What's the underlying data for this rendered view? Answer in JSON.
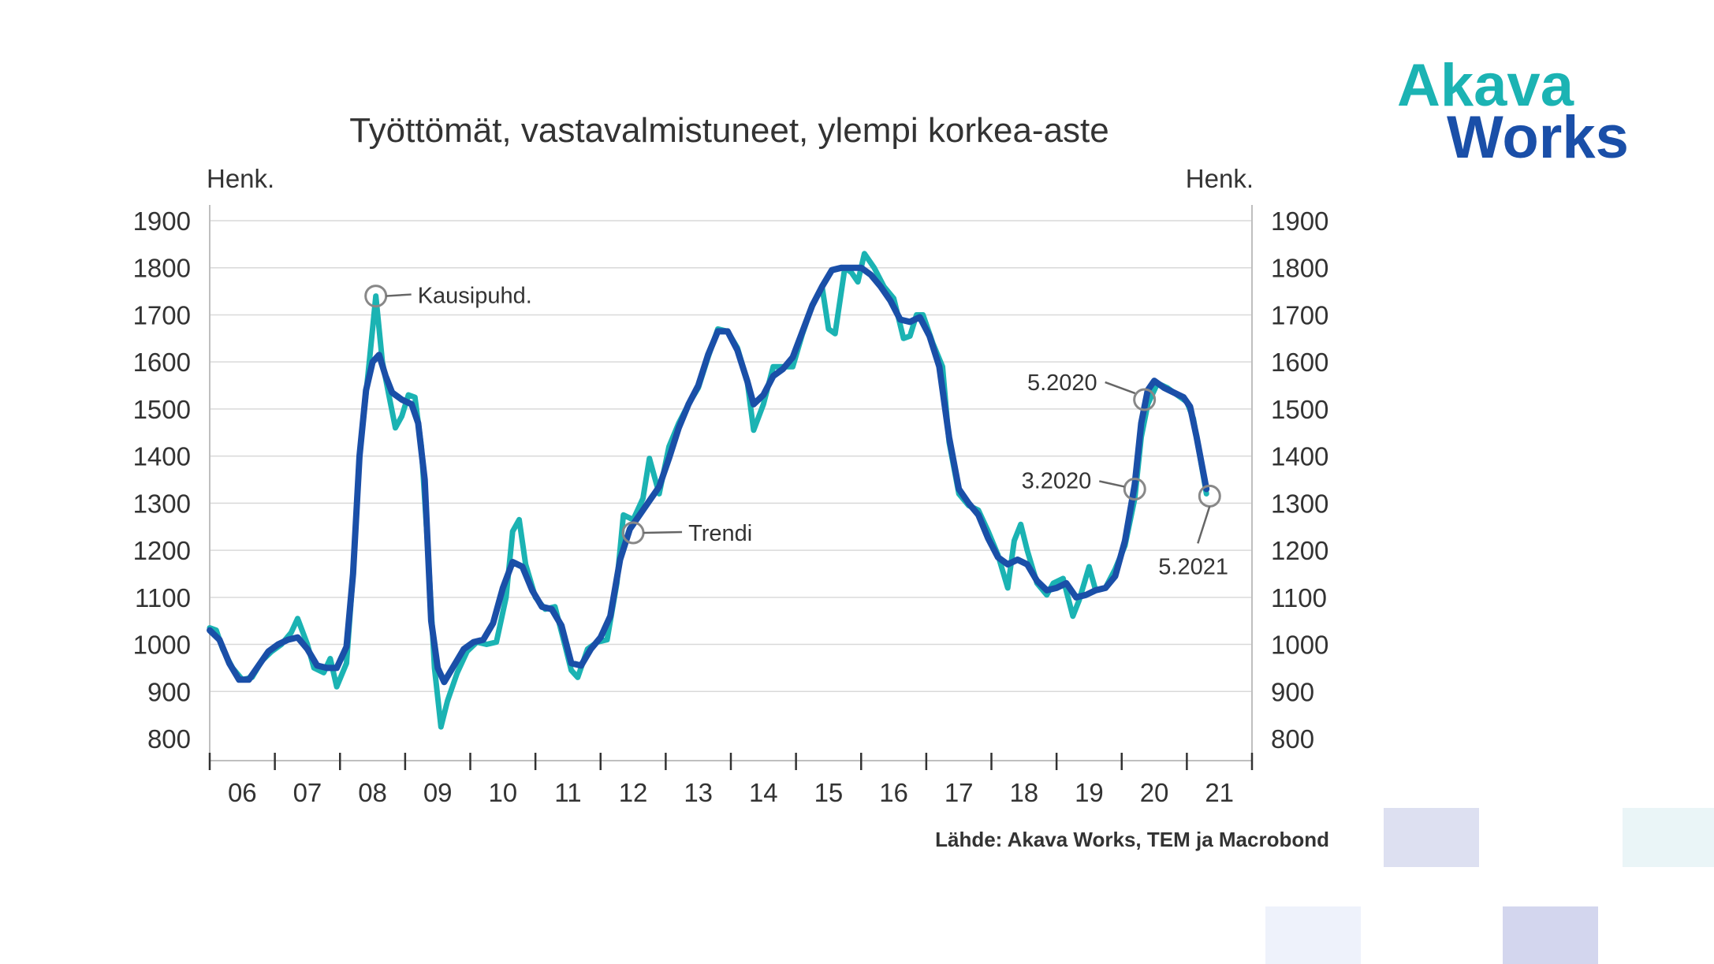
{
  "brand": {
    "logo_line1": "Akava",
    "logo_line2": "Works",
    "color_akava": "#1bb3b3",
    "color_works": "#1a4fa8"
  },
  "source_note": "Lähde: Akava Works, TEM ja Macrobond",
  "annotations": {
    "seasonal": "Kausipuhd.",
    "trend": "Trendi",
    "may2020": "5.2020",
    "mar2020": "3.2020",
    "may2021": "5.2021"
  },
  "chart_data": {
    "type": "line",
    "title": "Työttömät, vastavalmistuneet, ylempi korkea-aste",
    "ylabel_left": "Henk.",
    "ylabel_right": "Henk.",
    "ylim": [
      800,
      1900
    ],
    "yticks": [
      800,
      900,
      1000,
      1100,
      1200,
      1300,
      1400,
      1500,
      1600,
      1700,
      1800,
      1900
    ],
    "xlim": [
      2006,
      2022
    ],
    "xtick_labels": [
      "06",
      "07",
      "08",
      "09",
      "10",
      "11",
      "12",
      "13",
      "14",
      "15",
      "16",
      "17",
      "18",
      "19",
      "20",
      "21"
    ],
    "grid": true,
    "colors": {
      "seasonal": "#1bb3b3",
      "trend": "#1a4fa8",
      "grid": "#d9d9d9",
      "marker": "#888888"
    },
    "series": [
      {
        "name": "Kausipuhd.",
        "points": [
          [
            2006.0,
            1035
          ],
          [
            2006.1,
            1030
          ],
          [
            2006.2,
            990
          ],
          [
            2006.35,
            950
          ],
          [
            2006.5,
            925
          ],
          [
            2006.65,
            930
          ],
          [
            2006.8,
            965
          ],
          [
            2006.95,
            985
          ],
          [
            2007.1,
            1000
          ],
          [
            2007.25,
            1025
          ],
          [
            2007.35,
            1055
          ],
          [
            2007.5,
            1000
          ],
          [
            2007.6,
            950
          ],
          [
            2007.75,
            940
          ],
          [
            2007.85,
            970
          ],
          [
            2007.95,
            910
          ],
          [
            2008.1,
            960
          ],
          [
            2008.2,
            1150
          ],
          [
            2008.3,
            1400
          ],
          [
            2008.45,
            1600
          ],
          [
            2008.55,
            1740
          ],
          [
            2008.65,
            1600
          ],
          [
            2008.75,
            1530
          ],
          [
            2008.85,
            1460
          ],
          [
            2008.95,
            1485
          ],
          [
            2009.05,
            1530
          ],
          [
            2009.15,
            1525
          ],
          [
            2009.25,
            1420
          ],
          [
            2009.35,
            1200
          ],
          [
            2009.45,
            950
          ],
          [
            2009.55,
            825
          ],
          [
            2009.65,
            880
          ],
          [
            2009.8,
            940
          ],
          [
            2009.95,
            985
          ],
          [
            2010.1,
            1005
          ],
          [
            2010.25,
            1000
          ],
          [
            2010.4,
            1005
          ],
          [
            2010.55,
            1100
          ],
          [
            2010.65,
            1240
          ],
          [
            2010.75,
            1265
          ],
          [
            2010.85,
            1170
          ],
          [
            2011.0,
            1100
          ],
          [
            2011.15,
            1075
          ],
          [
            2011.3,
            1080
          ],
          [
            2011.45,
            1000
          ],
          [
            2011.55,
            945
          ],
          [
            2011.65,
            930
          ],
          [
            2011.8,
            990
          ],
          [
            2011.95,
            1005
          ],
          [
            2012.1,
            1010
          ],
          [
            2012.25,
            1130
          ],
          [
            2012.35,
            1275
          ],
          [
            2012.5,
            1265
          ],
          [
            2012.65,
            1310
          ],
          [
            2012.75,
            1395
          ],
          [
            2012.9,
            1320
          ],
          [
            2013.05,
            1420
          ],
          [
            2013.2,
            1470
          ],
          [
            2013.35,
            1510
          ],
          [
            2013.5,
            1545
          ],
          [
            2013.65,
            1610
          ],
          [
            2013.8,
            1670
          ],
          [
            2013.95,
            1665
          ],
          [
            2014.1,
            1630
          ],
          [
            2014.25,
            1560
          ],
          [
            2014.35,
            1455
          ],
          [
            2014.5,
            1510
          ],
          [
            2014.65,
            1590
          ],
          [
            2014.8,
            1590
          ],
          [
            2014.95,
            1590
          ],
          [
            2015.1,
            1660
          ],
          [
            2015.25,
            1720
          ],
          [
            2015.4,
            1760
          ],
          [
            2015.5,
            1670
          ],
          [
            2015.6,
            1660
          ],
          [
            2015.75,
            1800
          ],
          [
            2015.85,
            1790
          ],
          [
            2015.95,
            1770
          ],
          [
            2016.05,
            1830
          ],
          [
            2016.2,
            1800
          ],
          [
            2016.35,
            1760
          ],
          [
            2016.5,
            1735
          ],
          [
            2016.65,
            1650
          ],
          [
            2016.75,
            1655
          ],
          [
            2016.85,
            1700
          ],
          [
            2016.95,
            1700
          ],
          [
            2017.1,
            1640
          ],
          [
            2017.25,
            1590
          ],
          [
            2017.35,
            1430
          ],
          [
            2017.5,
            1320
          ],
          [
            2017.65,
            1295
          ],
          [
            2017.8,
            1285
          ],
          [
            2017.95,
            1240
          ],
          [
            2018.1,
            1190
          ],
          [
            2018.25,
            1120
          ],
          [
            2018.35,
            1220
          ],
          [
            2018.45,
            1255
          ],
          [
            2018.55,
            1200
          ],
          [
            2018.7,
            1130
          ],
          [
            2018.85,
            1105
          ],
          [
            2018.95,
            1130
          ],
          [
            2019.1,
            1140
          ],
          [
            2019.25,
            1060
          ],
          [
            2019.35,
            1095
          ],
          [
            2019.5,
            1165
          ],
          [
            2019.6,
            1115
          ],
          [
            2019.75,
            1120
          ],
          [
            2019.9,
            1160
          ],
          [
            2020.05,
            1210
          ],
          [
            2020.2,
            1310
          ],
          [
            2020.3,
            1440
          ],
          [
            2020.4,
            1510
          ],
          [
            2020.55,
            1555
          ],
          [
            2020.7,
            1545
          ],
          [
            2020.85,
            1530
          ],
          [
            2021.0,
            1515
          ],
          [
            2021.1,
            1480
          ],
          [
            2021.2,
            1400
          ],
          [
            2021.3,
            1320
          ]
        ]
      },
      {
        "name": "Trendi",
        "points": [
          [
            2006.0,
            1030
          ],
          [
            2006.15,
            1010
          ],
          [
            2006.3,
            960
          ],
          [
            2006.45,
            925
          ],
          [
            2006.6,
            925
          ],
          [
            2006.75,
            955
          ],
          [
            2006.9,
            985
          ],
          [
            2007.05,
            1000
          ],
          [
            2007.2,
            1010
          ],
          [
            2007.35,
            1015
          ],
          [
            2007.5,
            990
          ],
          [
            2007.65,
            955
          ],
          [
            2007.8,
            950
          ],
          [
            2007.95,
            950
          ],
          [
            2008.1,
            995
          ],
          [
            2008.2,
            1150
          ],
          [
            2008.3,
            1400
          ],
          [
            2008.4,
            1540
          ],
          [
            2008.5,
            1600
          ],
          [
            2008.6,
            1615
          ],
          [
            2008.7,
            1570
          ],
          [
            2008.8,
            1535
          ],
          [
            2008.95,
            1520
          ],
          [
            2009.1,
            1510
          ],
          [
            2009.2,
            1470
          ],
          [
            2009.3,
            1350
          ],
          [
            2009.4,
            1050
          ],
          [
            2009.5,
            950
          ],
          [
            2009.6,
            920
          ],
          [
            2009.75,
            955
          ],
          [
            2009.9,
            990
          ],
          [
            2010.05,
            1005
          ],
          [
            2010.2,
            1010
          ],
          [
            2010.35,
            1045
          ],
          [
            2010.5,
            1120
          ],
          [
            2010.65,
            1175
          ],
          [
            2010.8,
            1165
          ],
          [
            2010.95,
            1115
          ],
          [
            2011.1,
            1080
          ],
          [
            2011.25,
            1075
          ],
          [
            2011.4,
            1040
          ],
          [
            2011.55,
            960
          ],
          [
            2011.7,
            955
          ],
          [
            2011.85,
            990
          ],
          [
            2012.0,
            1015
          ],
          [
            2012.15,
            1060
          ],
          [
            2012.3,
            1180
          ],
          [
            2012.45,
            1245
          ],
          [
            2012.6,
            1275
          ],
          [
            2012.75,
            1305
          ],
          [
            2012.9,
            1335
          ],
          [
            2013.05,
            1395
          ],
          [
            2013.2,
            1460
          ],
          [
            2013.35,
            1510
          ],
          [
            2013.5,
            1550
          ],
          [
            2013.65,
            1615
          ],
          [
            2013.8,
            1665
          ],
          [
            2013.95,
            1665
          ],
          [
            2014.1,
            1625
          ],
          [
            2014.25,
            1560
          ],
          [
            2014.35,
            1510
          ],
          [
            2014.5,
            1530
          ],
          [
            2014.65,
            1570
          ],
          [
            2014.8,
            1585
          ],
          [
            2014.95,
            1610
          ],
          [
            2015.1,
            1665
          ],
          [
            2015.25,
            1720
          ],
          [
            2015.4,
            1760
          ],
          [
            2015.55,
            1795
          ],
          [
            2015.7,
            1800
          ],
          [
            2015.85,
            1800
          ],
          [
            2016.0,
            1800
          ],
          [
            2016.15,
            1785
          ],
          [
            2016.3,
            1760
          ],
          [
            2016.45,
            1730
          ],
          [
            2016.6,
            1690
          ],
          [
            2016.75,
            1685
          ],
          [
            2016.9,
            1695
          ],
          [
            2017.05,
            1655
          ],
          [
            2017.2,
            1590
          ],
          [
            2017.35,
            1440
          ],
          [
            2017.5,
            1330
          ],
          [
            2017.65,
            1300
          ],
          [
            2017.8,
            1275
          ],
          [
            2017.95,
            1225
          ],
          [
            2018.1,
            1185
          ],
          [
            2018.25,
            1170
          ],
          [
            2018.4,
            1180
          ],
          [
            2018.55,
            1170
          ],
          [
            2018.7,
            1135
          ],
          [
            2018.85,
            1115
          ],
          [
            2019.0,
            1120
          ],
          [
            2019.15,
            1130
          ],
          [
            2019.3,
            1100
          ],
          [
            2019.45,
            1105
          ],
          [
            2019.6,
            1115
          ],
          [
            2019.75,
            1120
          ],
          [
            2019.9,
            1145
          ],
          [
            2020.05,
            1220
          ],
          [
            2020.2,
            1340
          ],
          [
            2020.3,
            1470
          ],
          [
            2020.4,
            1540
          ],
          [
            2020.5,
            1560
          ],
          [
            2020.65,
            1545
          ],
          [
            2020.8,
            1535
          ],
          [
            2020.95,
            1525
          ],
          [
            2021.05,
            1505
          ],
          [
            2021.15,
            1440
          ],
          [
            2021.3,
            1330
          ]
        ]
      }
    ]
  }
}
